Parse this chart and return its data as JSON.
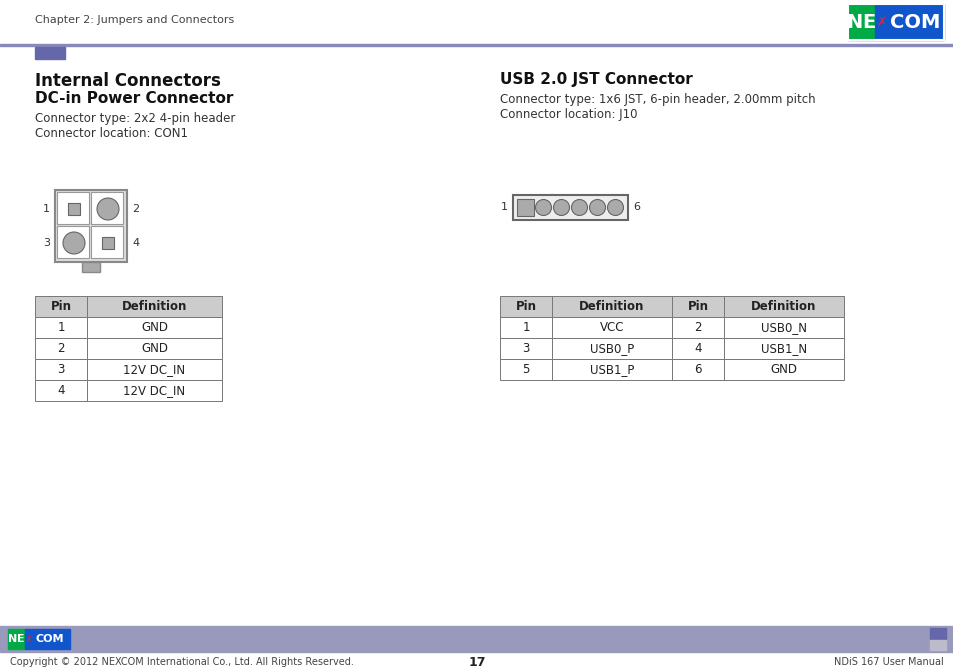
{
  "page_title": "Chapter 2: Jumpers and Connectors",
  "section_title": "Internal Connectors",
  "dc_title": "DC-in Power Connector",
  "dc_type": "Connector type: 2x2 4-pin header",
  "dc_location": "Connector location: CON1",
  "usb_title": "USB 2.0 JST Connector",
  "usb_type": "Connector type: 1x6 JST, 6-pin header, 2.00mm pitch",
  "usb_location": "Connector location: J10",
  "dc_table_headers": [
    "Pin",
    "Definition"
  ],
  "dc_table_rows": [
    [
      "1",
      "GND"
    ],
    [
      "2",
      "GND"
    ],
    [
      "3",
      "12V DC_IN"
    ],
    [
      "4",
      "12V DC_IN"
    ]
  ],
  "usb_table_headers": [
    "Pin",
    "Definition",
    "Pin",
    "Definition"
  ],
  "usb_table_rows": [
    [
      "1",
      "VCC",
      "2",
      "USB0_N"
    ],
    [
      "3",
      "USB0_P",
      "4",
      "USB1_N"
    ],
    [
      "5",
      "USB1_P",
      "6",
      "GND"
    ]
  ],
  "header_line_color": "#8888bb",
  "accent_rect_color": "#6666aa",
  "nexcom_green": "#00aa44",
  "nexcom_blue": "#1155cc",
  "table_border_color": "#777777",
  "table_header_bg": "#cccccc",
  "connector_border": "#888888",
  "connector_fill_light": "#bbbbbb",
  "connector_fill_dark": "#888888",
  "footer_bar_color": "#9999bb",
  "footer_bg": "#aaaacc",
  "page_number": "17",
  "footer_left": "Copyright © 2012 NEXCOM International Co., Ltd. All Rights Reserved.",
  "footer_right": "NDiS 167 User Manual",
  "bg_color": "#ffffff"
}
